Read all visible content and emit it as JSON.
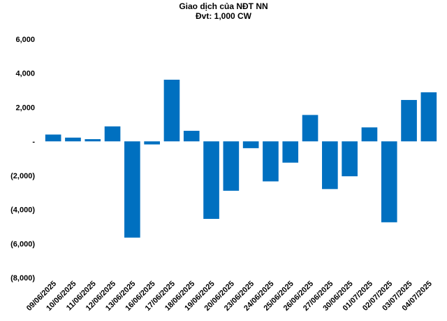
{
  "chart_data": {
    "type": "bar",
    "title": "Giao dịch của NĐT NN",
    "subtitle": "Đvt: 1,000 CW",
    "xlabel": "",
    "ylabel": "",
    "ylim": [
      -8000,
      6000
    ],
    "yticks": [
      6000,
      4000,
      2000,
      0,
      -2000,
      -4000,
      -6000,
      -8000
    ],
    "ytick_labels": [
      "6,000",
      "4,000",
      "2,000",
      "-",
      "(2,000)",
      "(4,000)",
      "(6,000)",
      "(8,000)"
    ],
    "grid": false,
    "legend": "none",
    "bar_color": "#0070C0",
    "categories": [
      "09/06/2025",
      "10/06/2025",
      "11/06/2025",
      "12/06/2025",
      "13/06/2025",
      "16/06/2025",
      "17/06/2025",
      "18/06/2025",
      "19/06/2025",
      "20/06/2025",
      "23/06/2025",
      "24/06/2025",
      "25/06/2025",
      "26/06/2025",
      "27/06/2025",
      "30/06/2025",
      "01/07/2025",
      "02/07/2025",
      "03/07/2025",
      "04/07/2025"
    ],
    "values": [
      400,
      220,
      130,
      880,
      -5650,
      -180,
      3620,
      620,
      -4550,
      -2900,
      -400,
      -2350,
      -1250,
      1550,
      -2800,
      -2050,
      820,
      -4750,
      2430,
      2880
    ]
  }
}
